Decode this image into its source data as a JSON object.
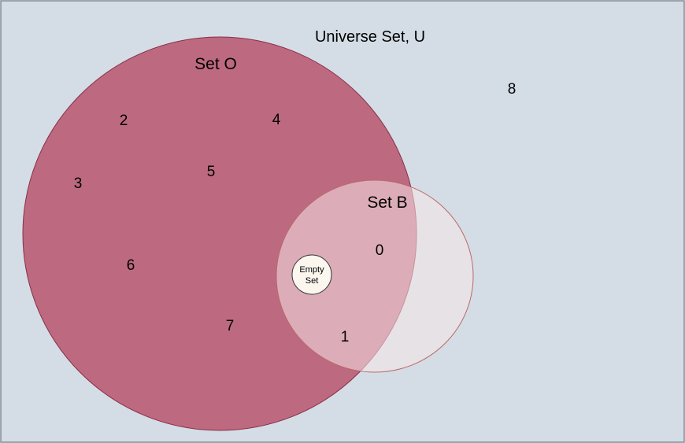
{
  "diagram": {
    "universe": {
      "label": "Universe Set, U",
      "fill": "#d4dde5",
      "stroke": "#7f8a94"
    },
    "set_o": {
      "label": "Set O",
      "fill": "#b8556f",
      "stroke": "#8a2f48"
    },
    "set_b": {
      "label": "Set B",
      "fill": "#f5e6e6",
      "stroke": "#b86a6a"
    },
    "empty_set": {
      "label_line1": "Empty",
      "label_line2": "Set",
      "fill": "#fbf7ee",
      "stroke": "#333333"
    },
    "elements": {
      "e0": "0",
      "e1": "1",
      "e2": "2",
      "e3": "3",
      "e4": "4",
      "e5": "5",
      "e6": "6",
      "e7": "7",
      "e8": "8"
    }
  }
}
